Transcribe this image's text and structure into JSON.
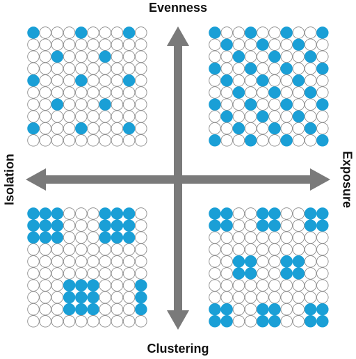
{
  "labels": {
    "top": "Evenness",
    "bottom": "Clustering",
    "left": "Isolation",
    "right": "Exposure"
  },
  "colors": {
    "filled": "#1a9fd6",
    "empty": "#ffffff",
    "stroke": "#8c8c8c",
    "arrow": "#7a7a7a"
  },
  "grid": {
    "rows": 10,
    "cols": 10
  },
  "panels": [
    {
      "id": "evenness-isolation",
      "quadrant": "top-left",
      "filled": [
        [
          0,
          0
        ],
        [
          0,
          4
        ],
        [
          0,
          8
        ],
        [
          2,
          2
        ],
        [
          2,
          6
        ],
        [
          4,
          0
        ],
        [
          4,
          4
        ],
        [
          4,
          8
        ],
        [
          6,
          2
        ],
        [
          6,
          6
        ],
        [
          8,
          0
        ],
        [
          8,
          4
        ],
        [
          8,
          8
        ]
      ]
    },
    {
      "id": "evenness-exposure",
      "quadrant": "top-right",
      "filled": [
        [
          0,
          0
        ],
        [
          0,
          3
        ],
        [
          0,
          6
        ],
        [
          0,
          9
        ],
        [
          1,
          1
        ],
        [
          1,
          4
        ],
        [
          1,
          7
        ],
        [
          2,
          2
        ],
        [
          2,
          5
        ],
        [
          2,
          8
        ],
        [
          3,
          0
        ],
        [
          3,
          3
        ],
        [
          3,
          6
        ],
        [
          3,
          9
        ],
        [
          4,
          1
        ],
        [
          4,
          4
        ],
        [
          4,
          7
        ],
        [
          5,
          2
        ],
        [
          5,
          5
        ],
        [
          5,
          8
        ],
        [
          6,
          0
        ],
        [
          6,
          3
        ],
        [
          6,
          6
        ],
        [
          6,
          9
        ],
        [
          7,
          1
        ],
        [
          7,
          4
        ],
        [
          7,
          7
        ],
        [
          8,
          2
        ],
        [
          8,
          5
        ],
        [
          8,
          8
        ],
        [
          9,
          0
        ],
        [
          9,
          3
        ],
        [
          9,
          6
        ],
        [
          9,
          9
        ]
      ]
    },
    {
      "id": "clustering-isolation",
      "quadrant": "bottom-left",
      "filled": [
        [
          0,
          0
        ],
        [
          0,
          1
        ],
        [
          0,
          2
        ],
        [
          0,
          6
        ],
        [
          0,
          7
        ],
        [
          0,
          8
        ],
        [
          1,
          0
        ],
        [
          1,
          1
        ],
        [
          1,
          2
        ],
        [
          1,
          6
        ],
        [
          1,
          7
        ],
        [
          1,
          8
        ],
        [
          2,
          0
        ],
        [
          2,
          1
        ],
        [
          2,
          2
        ],
        [
          2,
          6
        ],
        [
          2,
          7
        ],
        [
          2,
          8
        ],
        [
          6,
          3
        ],
        [
          6,
          4
        ],
        [
          6,
          5
        ],
        [
          6,
          9
        ],
        [
          7,
          3
        ],
        [
          7,
          4
        ],
        [
          7,
          5
        ],
        [
          7,
          9
        ],
        [
          8,
          3
        ],
        [
          8,
          4
        ],
        [
          8,
          5
        ],
        [
          8,
          9
        ]
      ]
    },
    {
      "id": "clustering-exposure",
      "quadrant": "bottom-right",
      "filled": [
        [
          0,
          0
        ],
        [
          0,
          1
        ],
        [
          0,
          4
        ],
        [
          0,
          5
        ],
        [
          0,
          8
        ],
        [
          0,
          9
        ],
        [
          1,
          0
        ],
        [
          1,
          1
        ],
        [
          1,
          4
        ],
        [
          1,
          5
        ],
        [
          1,
          8
        ],
        [
          1,
          9
        ],
        [
          4,
          2
        ],
        [
          4,
          3
        ],
        [
          4,
          6
        ],
        [
          4,
          7
        ],
        [
          5,
          2
        ],
        [
          5,
          3
        ],
        [
          5,
          6
        ],
        [
          5,
          7
        ],
        [
          8,
          0
        ],
        [
          8,
          1
        ],
        [
          8,
          4
        ],
        [
          8,
          5
        ],
        [
          8,
          8
        ],
        [
          8,
          9
        ],
        [
          9,
          0
        ],
        [
          9,
          1
        ],
        [
          9,
          4
        ],
        [
          9,
          5
        ],
        [
          9,
          8
        ],
        [
          9,
          9
        ]
      ]
    }
  ]
}
